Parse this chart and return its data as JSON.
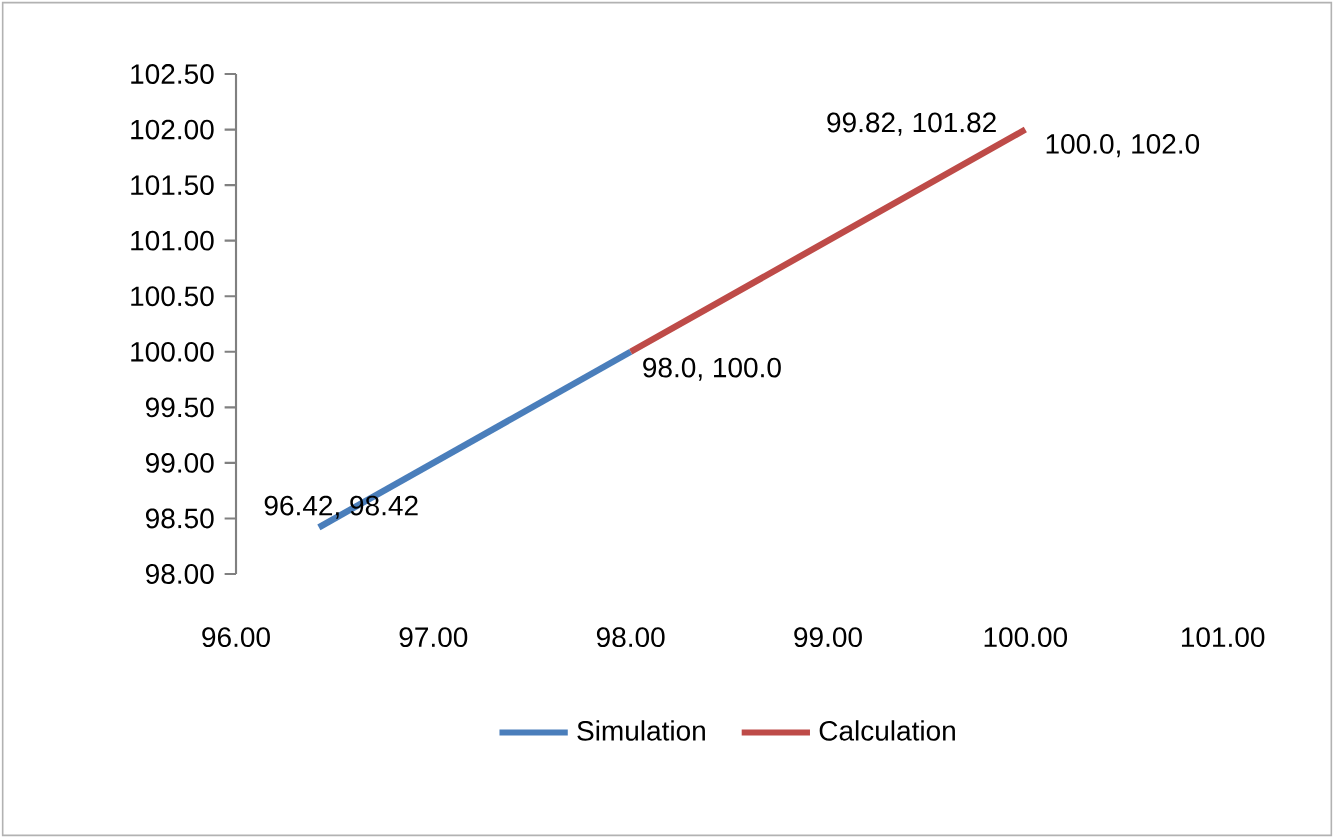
{
  "chart_data": {
    "type": "line",
    "xlim": [
      96,
      101
    ],
    "ylim": [
      98,
      102.5
    ],
    "xticks": [
      {
        "value": 96,
        "label": "96.00"
      },
      {
        "value": 97,
        "label": "97.00"
      },
      {
        "value": 98,
        "label": "98.00"
      },
      {
        "value": 99,
        "label": "99.00"
      },
      {
        "value": 100,
        "label": "100.00"
      },
      {
        "value": 101,
        "label": "101.00"
      }
    ],
    "yticks": [
      {
        "value": 98,
        "label": "98.00"
      },
      {
        "value": 98.5,
        "label": "98.50"
      },
      {
        "value": 99,
        "label": "99.00"
      },
      {
        "value": 99.5,
        "label": "99.50"
      },
      {
        "value": 100,
        "label": "100.00"
      },
      {
        "value": 100.5,
        "label": "100.50"
      },
      {
        "value": 101,
        "label": "101.00"
      },
      {
        "value": 101.5,
        "label": "101.50"
      },
      {
        "value": 102,
        "label": "102.00"
      },
      {
        "value": 102.5,
        "label": "102.50"
      }
    ],
    "series": [
      {
        "name": "Simulation",
        "color": "#4a7ebb",
        "x": [
          96.42,
          98.0
        ],
        "values": [
          98.42,
          100.0
        ]
      },
      {
        "name": "Calculation",
        "color": "#be4b48",
        "x": [
          98.0,
          99.82,
          100.0
        ],
        "values": [
          100.0,
          101.82,
          102.0
        ]
      }
    ],
    "annotations": [
      {
        "text": "96.42, 98.42",
        "x": 96.42,
        "y": 98.42
      },
      {
        "text": "98.0, 100.0",
        "x": 98.0,
        "y": 100.0
      },
      {
        "text": "99.82, 101.82",
        "x": 99.82,
        "y": 101.82
      },
      {
        "text": "100.0, 102.0",
        "x": 100.0,
        "y": 102.0
      }
    ],
    "legend": "bottom",
    "grid": false,
    "marker": "none",
    "line_style": "solid"
  }
}
